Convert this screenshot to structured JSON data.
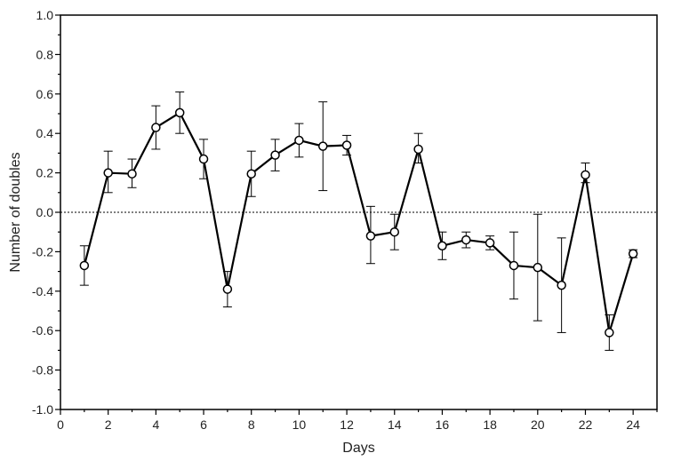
{
  "chart_data": {
    "type": "line",
    "xlabel": "Days",
    "ylabel": "Number of doubles",
    "xlim": [
      0,
      25
    ],
    "ylim": [
      -1.0,
      1.0
    ],
    "xticks": [
      0,
      2,
      4,
      6,
      8,
      10,
      12,
      14,
      16,
      18,
      20,
      22,
      24
    ],
    "yticks": [
      -1.0,
      -0.8,
      -0.6,
      -0.4,
      -0.2,
      0.0,
      0.2,
      0.4,
      0.6,
      0.8,
      1.0
    ],
    "xtick_labels": [
      "0",
      "2",
      "4",
      "6",
      "8",
      "10",
      "12",
      "14",
      "16",
      "18",
      "20",
      "22",
      "24"
    ],
    "ytick_labels": [
      "-1.0",
      "-0.8",
      "-0.6",
      "-0.4",
      "-0.2",
      "0.0",
      "0.2",
      "0.4",
      "0.6",
      "0.8",
      "1.0"
    ],
    "reference_line_y": 0.0,
    "grid": false,
    "marker": "open-circle",
    "colors": {
      "line": "#000000",
      "marker_fill": "#ffffff",
      "reference": "#000000"
    },
    "series": [
      {
        "x": [
          1,
          2,
          3,
          4,
          5,
          6,
          7,
          8,
          9,
          10,
          11,
          12,
          13,
          14,
          15,
          16,
          17,
          18,
          19,
          20,
          21,
          22,
          23,
          24
        ],
        "y": [
          -0.27,
          0.2,
          0.195,
          0.43,
          0.505,
          0.27,
          -0.39,
          0.195,
          0.29,
          0.365,
          0.335,
          0.34,
          -0.12,
          -0.1,
          0.32,
          -0.17,
          -0.14,
          -0.155,
          -0.27,
          -0.28,
          -0.37,
          0.19,
          -0.61,
          -0.21
        ],
        "err_low": [
          -0.37,
          0.1,
          0.125,
          0.32,
          0.4,
          0.17,
          -0.48,
          0.08,
          0.21,
          0.28,
          0.11,
          0.29,
          -0.26,
          -0.19,
          0.25,
          -0.24,
          -0.18,
          -0.19,
          -0.44,
          -0.55,
          -0.61,
          0.15,
          -0.7,
          -0.23
        ],
        "err_high": [
          -0.17,
          0.31,
          0.27,
          0.54,
          0.61,
          0.37,
          -0.3,
          0.31,
          0.37,
          0.45,
          0.56,
          0.39,
          0.03,
          -0.01,
          0.4,
          -0.1,
          -0.1,
          -0.12,
          -0.1,
          -0.01,
          -0.13,
          0.25,
          -0.52,
          -0.19
        ]
      }
    ]
  }
}
